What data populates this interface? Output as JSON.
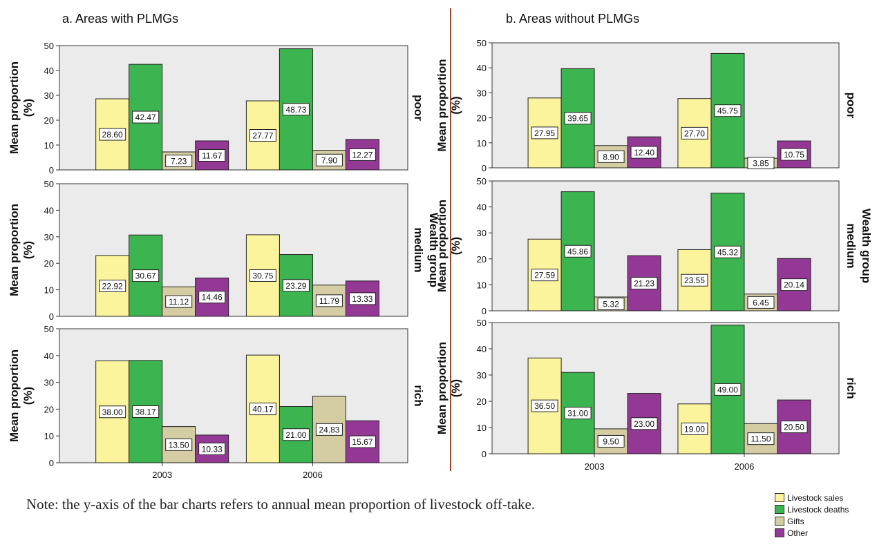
{
  "chart_data": {
    "type": "bar",
    "ylabel_lines": [
      "Mean proportion",
      "(%)"
    ],
    "row_axis_label": "Wealth group",
    "rows": [
      "poor",
      "medium",
      "rich"
    ],
    "categories": [
      "2003",
      "2006"
    ],
    "ylim": [
      0,
      50
    ],
    "yticks": [
      0,
      10,
      20,
      30,
      40,
      50
    ],
    "legend_entries": [
      "Livestock sales",
      "Livestock deaths",
      "Gifts",
      "Other"
    ],
    "series_colors": [
      "#FBF49C",
      "#3CB550",
      "#D4CCA2",
      "#943896"
    ],
    "panel_color": "#EBEBEB",
    "panels": [
      {
        "title": "a. Areas with PLMGs",
        "rows": [
          {
            "name": "poor",
            "values": [
              [
                28.6,
                42.47,
                7.23,
                11.67
              ],
              [
                27.77,
                48.73,
                7.9,
                12.27
              ]
            ],
            "labels": [
              [
                "28.60",
                "42.47",
                "7.23",
                "11.67"
              ],
              [
                "27.77",
                "48.73",
                "7.90",
                "12.27"
              ]
            ]
          },
          {
            "name": "medium",
            "values": [
              [
                22.92,
                30.67,
                11.12,
                14.46
              ],
              [
                30.75,
                23.29,
                11.79,
                13.33
              ]
            ],
            "labels": [
              [
                "22.92",
                "30.67",
                "11.12",
                "14.46"
              ],
              [
                "30.75",
                "23.29",
                "11.79",
                "13.33"
              ]
            ]
          },
          {
            "name": "rich",
            "values": [
              [
                38.0,
                38.17,
                13.5,
                10.33
              ],
              [
                40.17,
                21.0,
                24.83,
                15.67
              ]
            ],
            "labels": [
              [
                "38.00",
                "38.17",
                "13.50",
                "10.33"
              ],
              [
                "40.17",
                "21.00",
                "24.83",
                "15.67"
              ]
            ]
          }
        ]
      },
      {
        "title": "b. Areas without PLMGs",
        "rows": [
          {
            "name": "poor",
            "values": [
              [
                27.95,
                39.65,
                8.9,
                12.4
              ],
              [
                27.7,
                45.75,
                3.85,
                10.75
              ]
            ],
            "labels": [
              [
                "27.95",
                "39.65",
                "8.90",
                "12.40"
              ],
              [
                "27.70",
                "45.75",
                "3.85",
                "10.75"
              ]
            ]
          },
          {
            "name": "medium",
            "values": [
              [
                27.59,
                45.86,
                5.32,
                21.23
              ],
              [
                23.55,
                45.32,
                6.45,
                20.14
              ]
            ],
            "labels": [
              [
                "27.59",
                "45.86",
                "5.32",
                "21.23"
              ],
              [
                "23.55",
                "45.32",
                "6.45",
                "20.14"
              ]
            ]
          },
          {
            "name": "rich",
            "values": [
              [
                36.5,
                31.0,
                9.5,
                23.0
              ],
              [
                19.0,
                49.0,
                11.5,
                20.5
              ]
            ],
            "labels": [
              [
                "36.50",
                "31.00",
                "9.50",
                "23.00"
              ],
              [
                "19.00",
                "49.00",
                "11.50",
                "20.50"
              ]
            ]
          }
        ]
      }
    ]
  },
  "note": "Note: the y-axis of the bar charts refers to annual mean proportion of livestock off-take.",
  "divider_color": "#A0432B"
}
